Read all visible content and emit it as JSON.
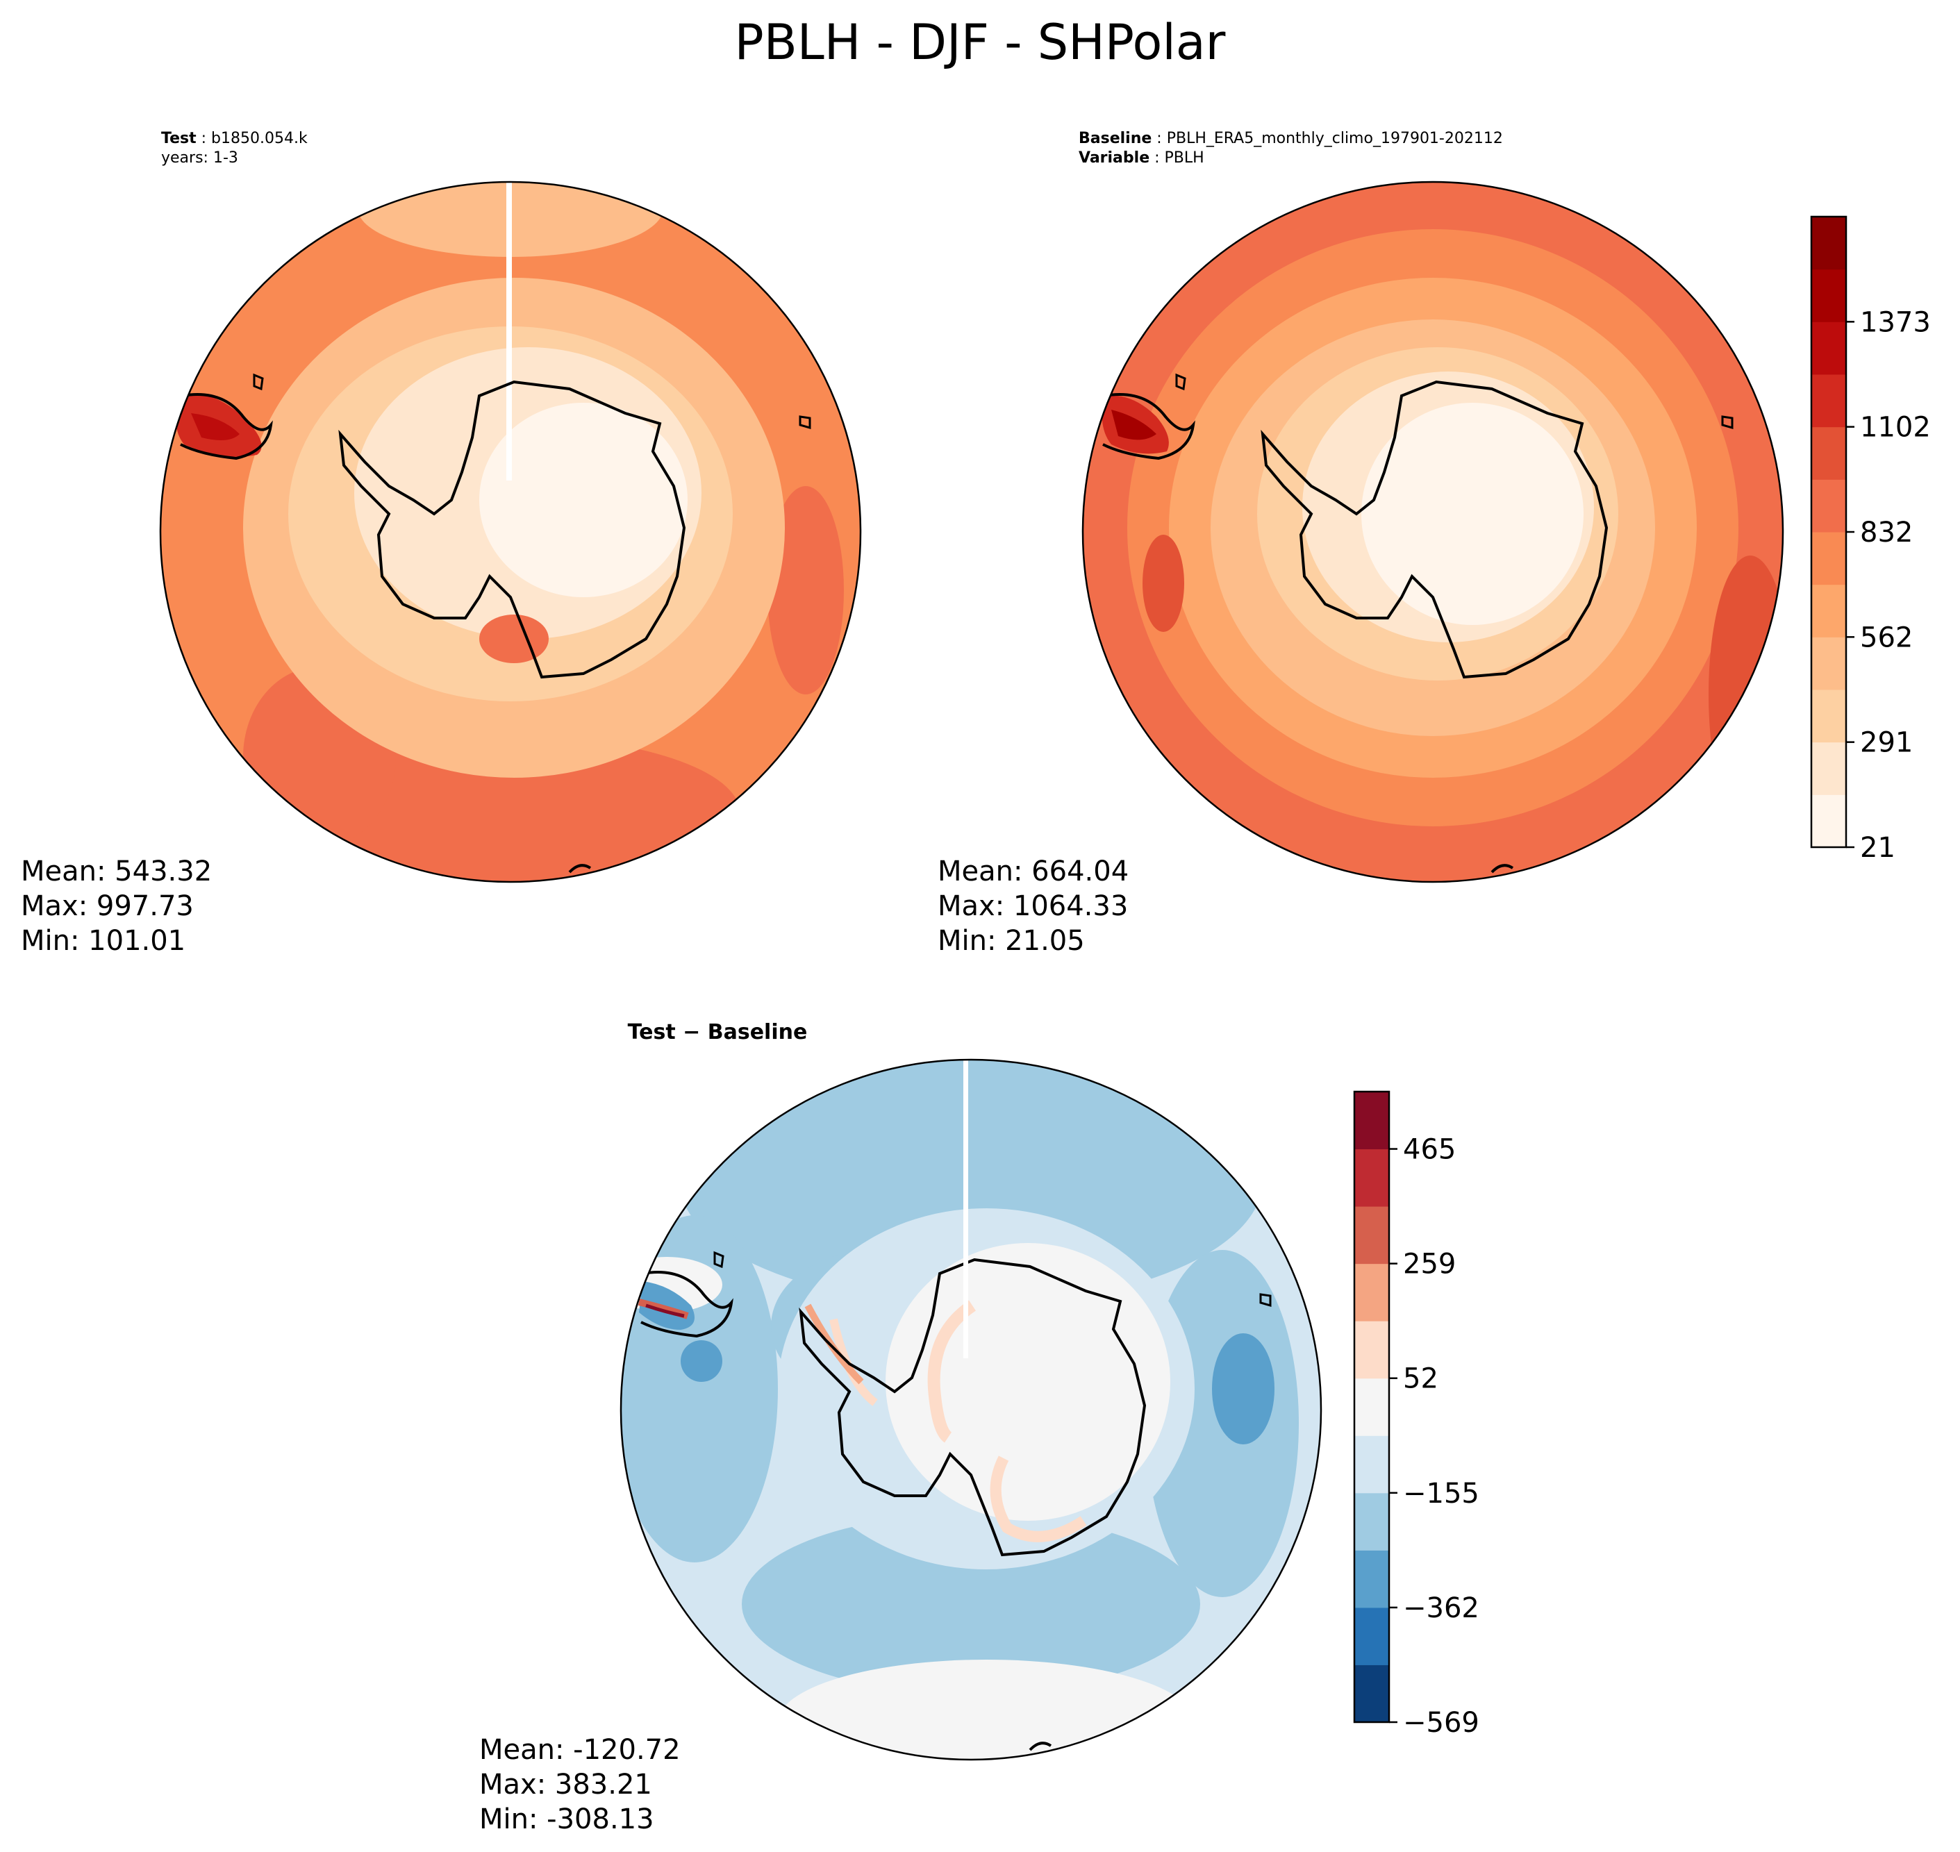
{
  "figure": {
    "title": "PBLH - DJF - SHPolar"
  },
  "panels": {
    "test": {
      "label_bold": "Test",
      "label_value": "b1850.054.k",
      "line2": "years: 1-3",
      "stats": {
        "mean": "Mean: 543.32",
        "max": "Max: 997.73",
        "min": "Min: 101.01"
      }
    },
    "baseline": {
      "label_bold": "Baseline",
      "label_value": "PBLH_ERA5_monthly_climo_197901-202112",
      "line2_bold": "Variable",
      "line2_value": "PBLH",
      "stats": {
        "mean": "Mean: 664.04",
        "max": "Max: 1064.33",
        "min": "Min: 21.05"
      }
    },
    "diff": {
      "title": "Test − Baseline",
      "stats": {
        "mean": "Mean: -120.72",
        "max": "Max: 383.21",
        "min": "Min: -308.13"
      }
    }
  },
  "colorbars": {
    "main": {
      "ticks": [
        "21",
        "291",
        "562",
        "832",
        "1102",
        "1373"
      ],
      "colors": [
        "#fff5eb",
        "#fee6ce",
        "#fdd0a2",
        "#fdbd8a",
        "#fda76b",
        "#f98a53",
        "#f16e4b",
        "#e35235",
        "#d32a1f",
        "#bd0c0c",
        "#a50000",
        "#8b0000"
      ]
    },
    "diff": {
      "ticks": [
        "−569",
        "−362",
        "−155",
        "52",
        "259",
        "465"
      ],
      "colors": [
        "#0c3f7a",
        "#2673b5",
        "#5aa0cc",
        "#9fcbe2",
        "#d4e6f2",
        "#f5f5f5",
        "#fddcc9",
        "#f4a582",
        "#d6604d",
        "#bf2b32",
        "#870c25"
      ]
    }
  },
  "colors": {
    "ocean_test": "#f98a53",
    "ocean_outer_base": "#f16e4b",
    "ice": "#fff1de",
    "diff_ocean": "#9fcbe2",
    "diff_light": "#d4e6f2",
    "diff_land": "#f5f5f5"
  }
}
